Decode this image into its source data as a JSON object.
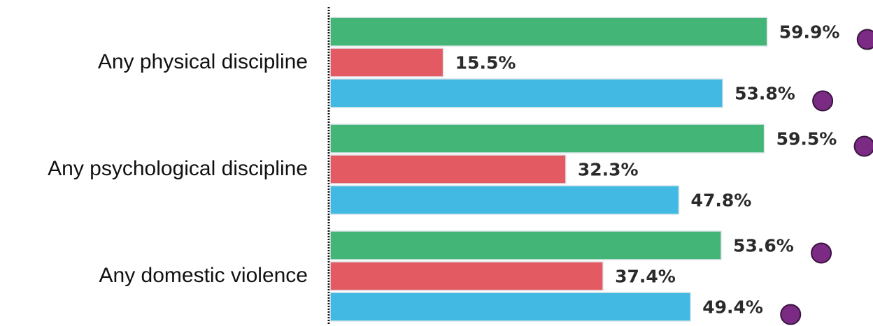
{
  "chart_data": {
    "type": "bar",
    "orientation": "horizontal",
    "categories": [
      "Any physical discipline",
      "Any psychological discipline",
      "Any domestic violence"
    ],
    "series": [
      {
        "color": "#43b677",
        "values": [
          59.9,
          59.5,
          53.6
        ],
        "value_labels": [
          "59.9%",
          "59.5%",
          "53.6%"
        ],
        "marker": [
          true,
          true,
          true
        ]
      },
      {
        "color": "#e45a62",
        "values": [
          15.5,
          32.3,
          37.4
        ],
        "value_labels": [
          "15.5%",
          "32.3%",
          "37.4%"
        ],
        "marker": [
          false,
          false,
          false
        ]
      },
      {
        "color": "#42b9e3",
        "values": [
          53.8,
          47.8,
          49.4
        ],
        "value_labels": [
          "53.8%",
          "47.8%",
          "49.4%"
        ],
        "marker": [
          true,
          false,
          true
        ]
      }
    ],
    "xlim": [
      0,
      70
    ],
    "grid": false,
    "legend": "none",
    "marker_color": "#7b2b84",
    "axis_line_style": "dotted"
  }
}
